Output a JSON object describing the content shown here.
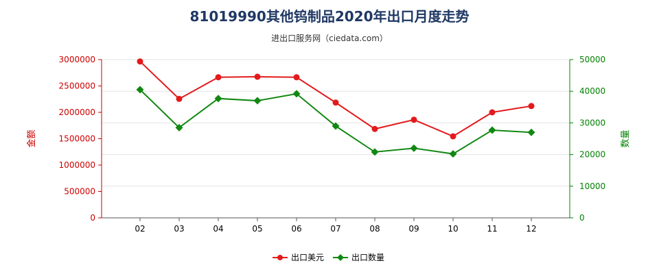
{
  "title": "81019990其他钨制品2020年出口月度走势",
  "subtitle": "进出口服务网（ciedata.com）",
  "chart_data": {
    "type": "line",
    "categories": [
      "02",
      "03",
      "04",
      "05",
      "06",
      "07",
      "08",
      "09",
      "10",
      "11",
      "12"
    ],
    "series": [
      {
        "name": "出口美元",
        "axis": "left",
        "color": "#e31a1c",
        "values": [
          2965000,
          2255000,
          2665000,
          2675000,
          2665000,
          2185000,
          1685000,
          1860000,
          1545000,
          2000000,
          2120000
        ]
      },
      {
        "name": "出口数量",
        "axis": "right",
        "color": "#118811",
        "values": [
          40500,
          28500,
          37700,
          37000,
          39200,
          29000,
          20800,
          22000,
          20200,
          27700,
          27000
        ]
      }
    ],
    "y_left": {
      "label": "金额",
      "ylim": [
        0,
        3000000
      ],
      "ticks": [
        "0",
        "500000",
        "1000000",
        "1500000",
        "2000000",
        "2500000",
        "3000000"
      ],
      "color": "#cc0000"
    },
    "y_right": {
      "label": "数量",
      "ylim": [
        0,
        50000
      ],
      "ticks": [
        "0",
        "10000",
        "20000",
        "30000",
        "40000",
        "50000"
      ],
      "color": "#008000"
    },
    "grid": "horizontal",
    "legend_position": "bottom"
  }
}
